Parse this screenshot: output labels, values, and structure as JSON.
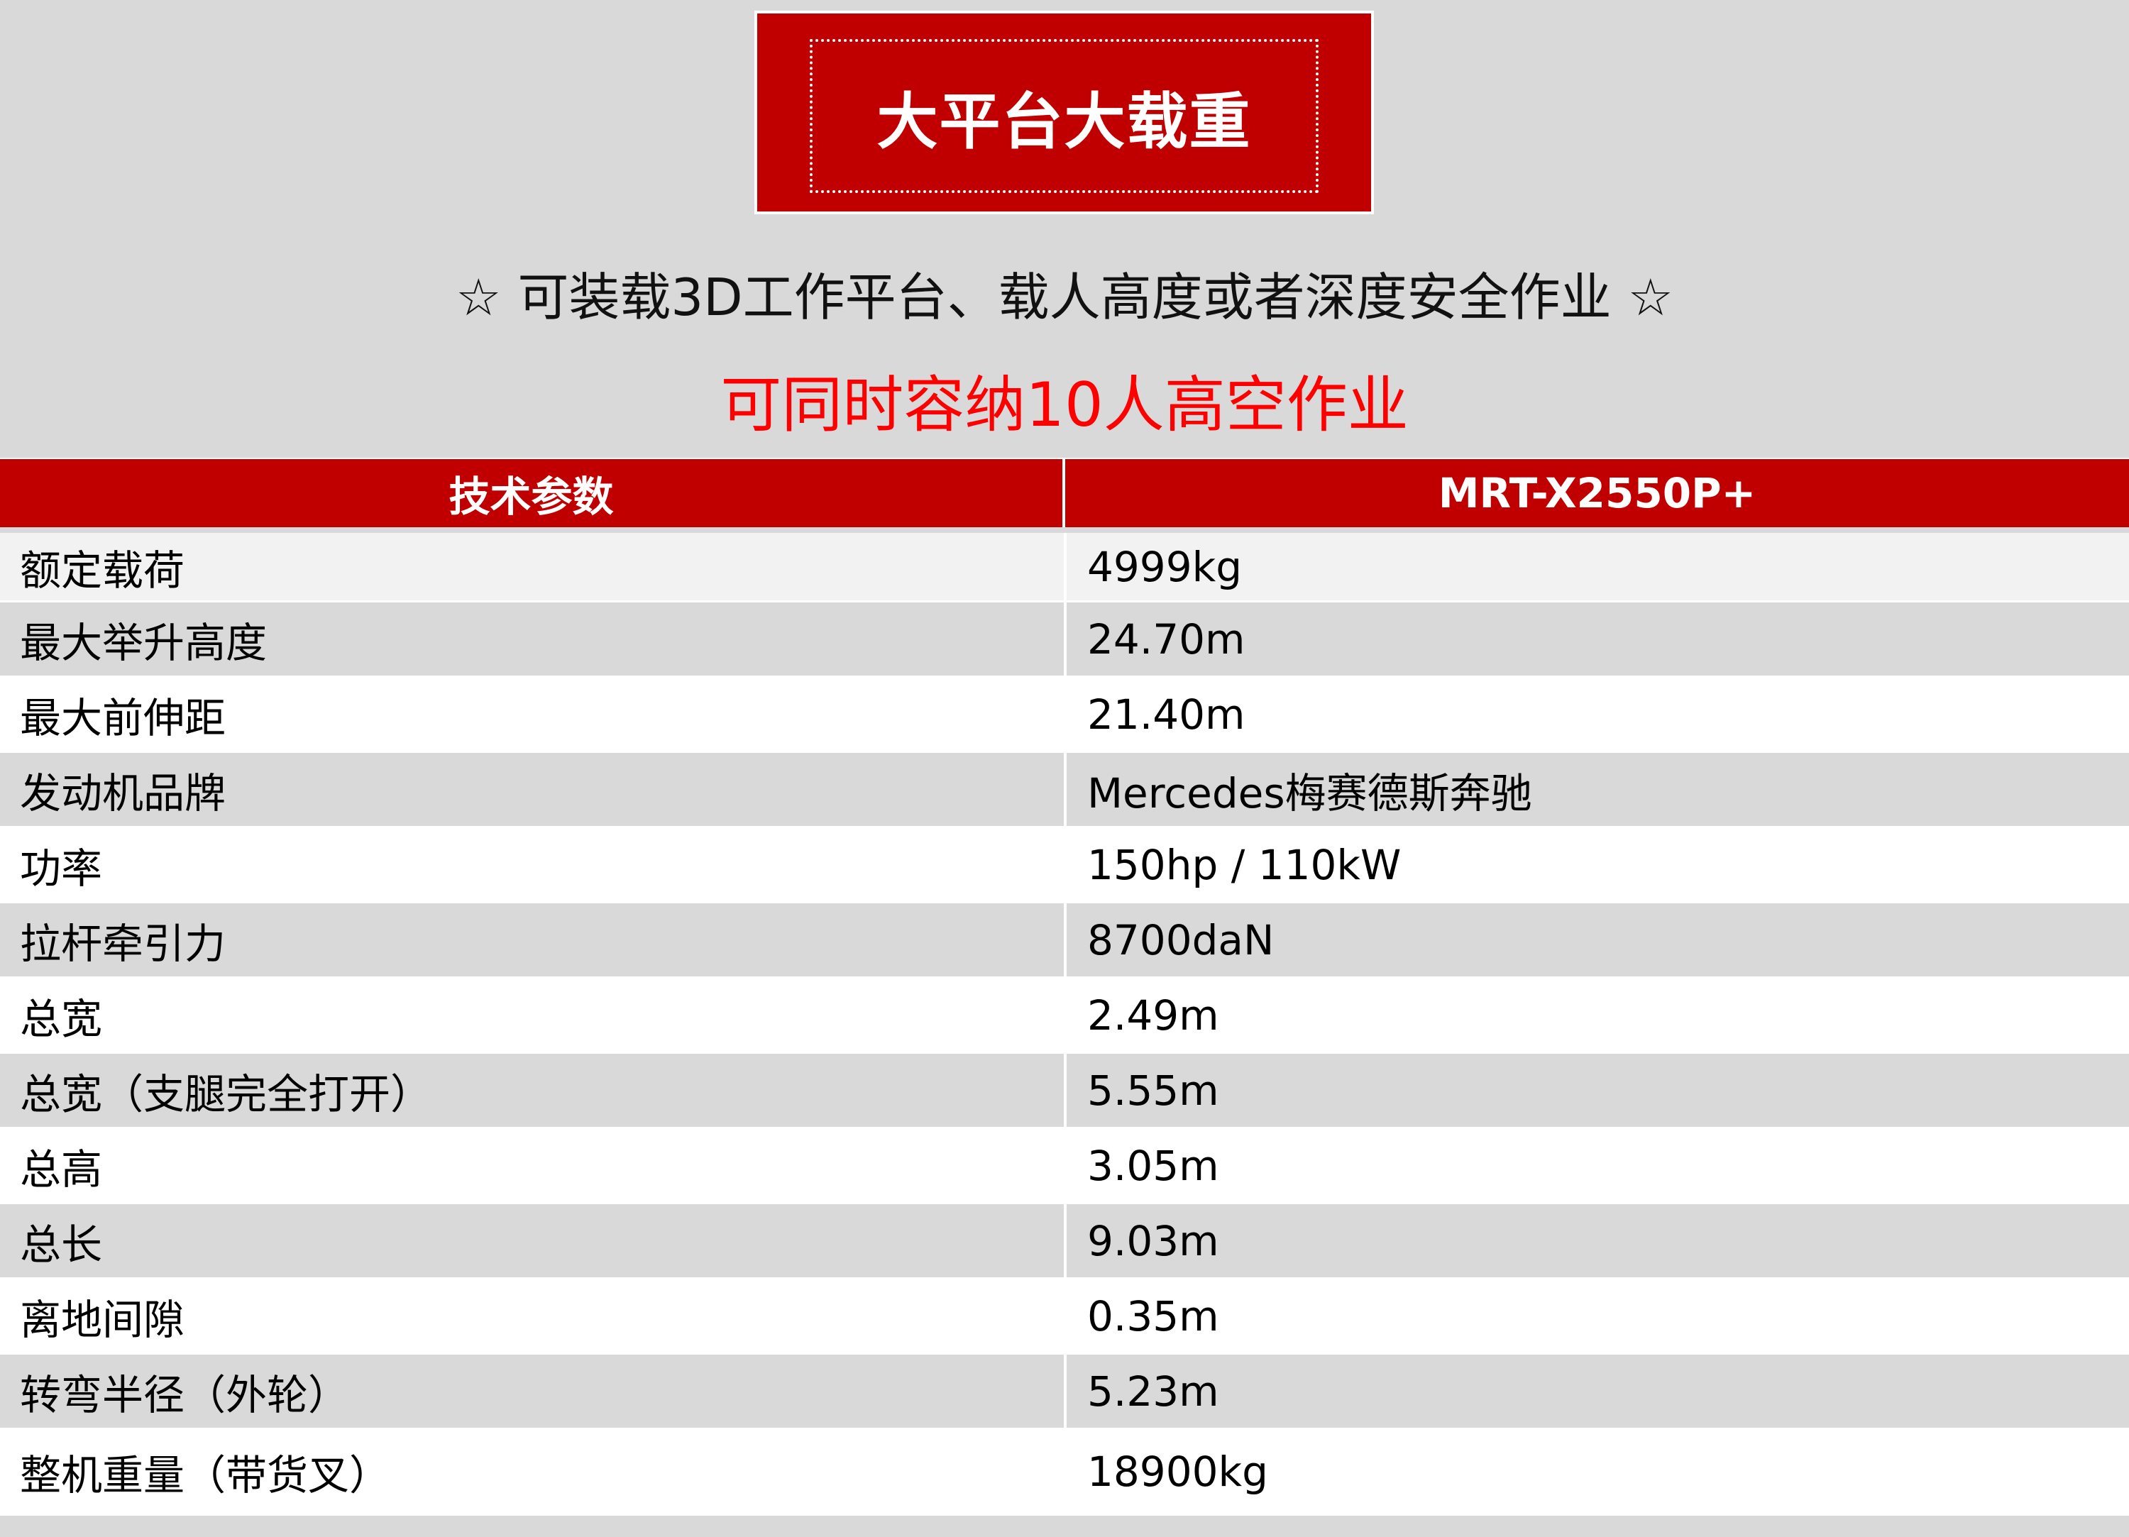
{
  "title": "大平台大载重",
  "subtitle": "☆ 可装载3D工作平台、载人高度或者深度安全作业 ☆",
  "highlight": "可同时容纳10人高空作业",
  "colors": {
    "brand_red": "#c00000",
    "highlight_red": "#ff0000",
    "background": "#d9d9d9"
  },
  "table": {
    "headers": [
      "技术参数",
      "MRT-X2550P+"
    ],
    "rows": [
      {
        "param": "额定载荷",
        "value": "4999kg"
      },
      {
        "param": "最大举升高度",
        "value": "24.70m"
      },
      {
        "param": "最大前伸距",
        "value": "21.40m"
      },
      {
        "param": "发动机品牌",
        "value": "Mercedes梅赛德斯奔驰"
      },
      {
        "param": "功率",
        "value": "150hp / 110kW"
      },
      {
        "param": "拉杆牵引力",
        "value": "8700daN"
      },
      {
        "param": "总宽",
        "value": "2.49m"
      },
      {
        "param": "总宽（支腿完全打开）",
        "value": "5.55m"
      },
      {
        "param": "总高",
        "value": "3.05m"
      },
      {
        "param": "总长",
        "value": "9.03m"
      },
      {
        "param": "离地间隙",
        "value": "0.35m"
      },
      {
        "param": "转弯半径（外轮）",
        "value": "5.23m"
      },
      {
        "param": "整机重量（带货叉）",
        "value": "18900kg"
      }
    ]
  }
}
